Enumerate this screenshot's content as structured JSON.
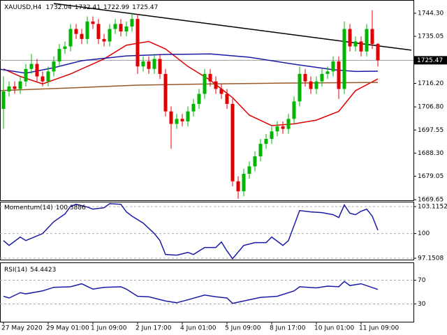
{
  "chart_data": [
    {
      "type": "candlestick",
      "title": "XAUUSD,H4",
      "up_color": "#00b400",
      "down_color": "#e00000",
      "open": [
        1706,
        1713,
        1715,
        1714,
        1717,
        1722,
        1724,
        1719,
        1717,
        1721,
        1725,
        1730,
        1731,
        1738,
        1736,
        1734,
        1741,
        1740,
        1734,
        1733,
        1738,
        1740,
        1737,
        1739,
        1742,
        1723,
        1725,
        1722,
        1726,
        1720,
        1705,
        1700,
        1702,
        1701,
        1705,
        1708,
        1712,
        1720,
        1717,
        1714,
        1712,
        1708,
        1677,
        1673,
        1680,
        1683,
        1687,
        1692,
        1694,
        1697,
        1699,
        1698,
        1702,
        1709,
        1720,
        1717,
        1714,
        1717,
        1720,
        1721,
        1725,
        1714,
        1738,
        1731,
        1733,
        1729,
        1738,
        1732.04
      ],
      "high": [
        1719,
        1717,
        1717,
        1719,
        1724,
        1728,
        1726,
        1721,
        1723,
        1727,
        1732,
        1733,
        1740,
        1740,
        1738,
        1743,
        1743,
        1742,
        1736,
        1740,
        1742,
        1742,
        1741,
        1744.5,
        1744,
        1727,
        1727,
        1728,
        1728,
        1722,
        1707,
        1704,
        1704,
        1707,
        1710,
        1714,
        1722,
        1722,
        1719,
        1716,
        1714,
        1710,
        1679,
        1682,
        1685,
        1689,
        1694,
        1696,
        1699,
        1701,
        1701,
        1704,
        1711,
        1723,
        1722,
        1719,
        1719,
        1722,
        1723,
        1727,
        1727,
        1741,
        1740,
        1735,
        1735,
        1740,
        1745.5,
        1732.41
      ],
      "low": [
        1698,
        1711,
        1712,
        1712,
        1715,
        1720,
        1717,
        1715,
        1715,
        1719,
        1723,
        1728,
        1729,
        1734,
        1732,
        1732,
        1738,
        1732,
        1731,
        1731,
        1736,
        1735,
        1735,
        1737,
        1720,
        1721,
        1720,
        1720,
        1718,
        1703,
        1690,
        1698,
        1699,
        1699,
        1703,
        1706,
        1710,
        1715,
        1712,
        1710,
        1706,
        1675,
        1670,
        1671,
        1678,
        1681,
        1685,
        1690,
        1692,
        1695,
        1696,
        1696,
        1700,
        1707,
        1715,
        1712,
        1712,
        1715,
        1718,
        1719,
        1710,
        1712,
        1729,
        1729,
        1727,
        1727,
        1730,
        1722.99
      ],
      "close": [
        1713,
        1715,
        1714,
        1717,
        1722,
        1724,
        1719,
        1717,
        1721,
        1725,
        1730,
        1731,
        1738,
        1736,
        1734,
        1741,
        1740,
        1734,
        1733,
        1738,
        1740,
        1737,
        1739,
        1742,
        1723,
        1725,
        1722,
        1726,
        1720,
        1705,
        1700,
        1702,
        1701,
        1705,
        1708,
        1712,
        1720,
        1717,
        1714,
        1712,
        1708,
        1677,
        1673,
        1680,
        1683,
        1687,
        1692,
        1694,
        1697,
        1699,
        1698,
        1702,
        1709,
        1720,
        1717,
        1714,
        1717,
        1720,
        1721,
        1725,
        1714,
        1738,
        1731,
        1733,
        1729,
        1738,
        1732,
        1725.47
      ],
      "ylim": [
        1669.4,
        1749.6
      ],
      "yticks": [
        {
          "value": 1744.3,
          "label": "1744.30"
        },
        1735.05,
        {
          "value": 1716.2,
          "label": "1716.20"
        },
        {
          "value": 1706.8,
          "label": "1706.80"
        },
        1697.55,
        {
          "value": 1688.3,
          "label": "1688.30"
        },
        1679.05,
        1669.65
      ],
      "xlim": [
        -0.625,
        73.375
      ],
      "xticks": [
        {
          "value": 0,
          "label": "27 May 2020"
        },
        {
          "value": 8,
          "label": "29 May 01:00"
        },
        {
          "value": 16,
          "label": "1 Jun 09:00"
        },
        {
          "value": 24,
          "label": "2 Jun 17:00"
        },
        {
          "value": 32,
          "label": "4 Jun 01:00"
        },
        {
          "value": 40,
          "label": "5 Jun 09:00"
        },
        {
          "value": 48,
          "label": "8 Jun 17:00"
        },
        {
          "value": 56,
          "label": "10 Jun 01:00"
        },
        {
          "value": 64,
          "label": "11 Jun 09:00"
        }
      ],
      "lines": [
        {
          "color": "#e00000",
          "x": [
            0,
            3,
            7,
            12,
            18,
            22,
            26,
            29,
            33,
            37,
            41,
            44,
            48,
            52,
            56,
            60,
            63,
            67
          ],
          "values": [
            1722,
            1719,
            1716,
            1720,
            1726,
            1731.5,
            1733,
            1730,
            1723,
            1717.5,
            1710.5,
            1703.5,
            1699.3,
            1700,
            1701.5,
            1705,
            1713.3,
            1718
          ]
        },
        {
          "color": "#1a1aa6",
          "x": [
            -1,
            4,
            9,
            14,
            22,
            29,
            37,
            44,
            52,
            59,
            63,
            67
          ],
          "values": [
            1722,
            1720.3,
            1722.5,
            1725.3,
            1727.2,
            1727.8,
            1728,
            1726.7,
            1723.9,
            1721.7,
            1721,
            1721.1
          ]
        },
        {
          "color": "#9a5a2a",
          "x": [
            -1,
            12,
            24,
            37,
            49,
            67
          ],
          "values": [
            1713.3,
            1714.4,
            1715.5,
            1716,
            1716.3,
            1716.6
          ]
        },
        {
          "color": "#000000",
          "x": [
            9,
            73
          ],
          "values": [
            1748.2,
            1729.5
          ]
        }
      ]
    },
    {
      "type": "line",
      "title": "Momentum(14)",
      "color": "#1a1aa6",
      "tick_style": "dashed",
      "x": [
        0,
        1,
        3,
        4,
        7,
        9,
        11,
        12,
        13,
        15,
        16,
        18,
        19,
        21,
        22,
        23,
        25,
        27,
        28,
        29,
        31,
        33,
        34,
        36,
        38,
        39,
        40,
        41,
        43,
        45,
        47,
        48,
        50,
        51,
        53,
        55,
        57,
        59,
        60,
        61,
        62,
        63,
        64,
        65,
        66,
        67
      ],
      "values": [
        99.19,
        98.63,
        99.6,
        99.19,
        100,
        101.37,
        102.26,
        103.14,
        103.38,
        103.06,
        102.82,
        102.98,
        103.46,
        103.38,
        102.5,
        102.01,
        101.21,
        100,
        99.19,
        97.58,
        97.5,
        97.82,
        97.58,
        98.39,
        98.39,
        99.03,
        97.99,
        97.1,
        98.63,
        98.95,
        98.95,
        99.6,
        98.63,
        99.19,
        102.66,
        102.5,
        102.42,
        102.18,
        101.85,
        103.3,
        102.34,
        102.18,
        102.58,
        102.82,
        102.01,
        100.3886
      ],
      "ylim": [
        96.99,
        103.68
      ],
      "yticks": [
        103.1152,
        100,
        97.1508
      ]
    },
    {
      "type": "line",
      "title": "RSI(14)",
      "color": "#1a1aa6",
      "tick_style": "dashed",
      "x": [
        0,
        1,
        3,
        4,
        7,
        9,
        12,
        14,
        16,
        18,
        21,
        22,
        24,
        26,
        29,
        31,
        33,
        36,
        38,
        40,
        41,
        43,
        46,
        49,
        52,
        53,
        56,
        58,
        60,
        61,
        62,
        64,
        67
      ],
      "values": [
        43,
        40,
        49,
        47,
        52,
        58,
        59,
        64,
        55,
        58,
        59,
        55,
        43,
        42,
        35,
        32,
        37,
        45,
        42,
        40,
        31,
        35,
        41,
        43,
        52,
        59,
        57,
        60,
        59,
        68,
        61,
        64,
        54.4423
      ],
      "ylim": [
        0,
        100
      ],
      "yticks": [
        70,
        30
      ]
    }
  ]
}
